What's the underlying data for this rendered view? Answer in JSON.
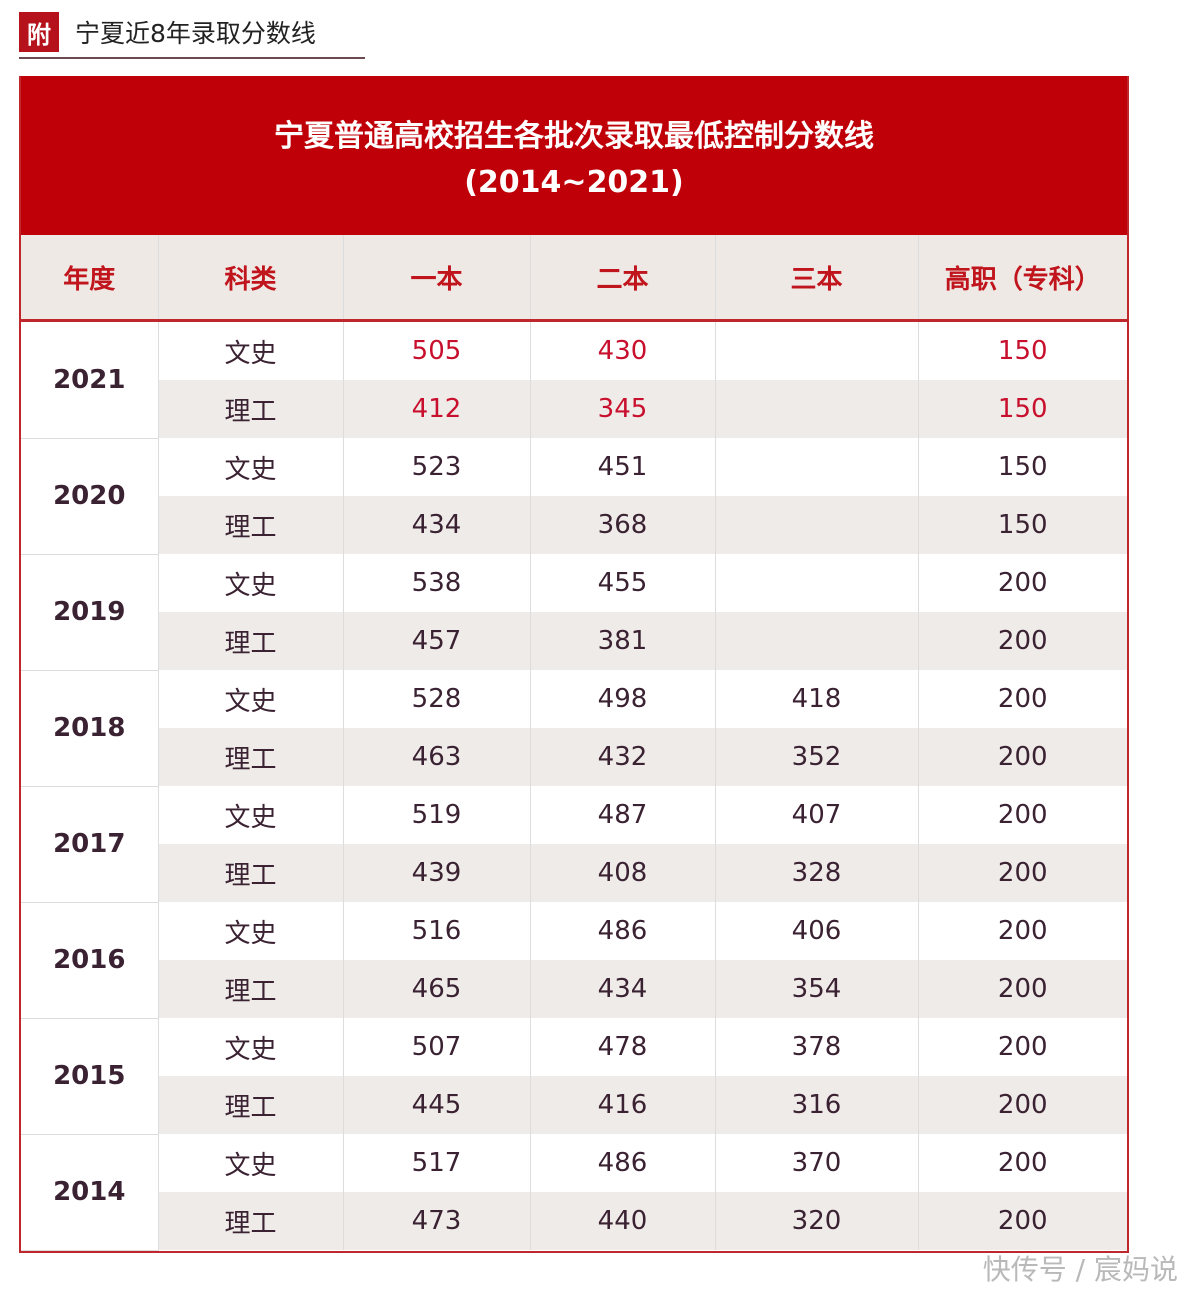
{
  "header": {
    "badge": "附",
    "title": "宁夏近8年录取分数线"
  },
  "banner": {
    "title": "宁夏普通高校招生各批次录取最低控制分数线",
    "range": "(2014~2021)"
  },
  "columns": [
    "年度",
    "科类",
    "一本",
    "二本",
    "三本",
    "高职（专科）"
  ],
  "rows": [
    {
      "year": "2021",
      "highlight": true,
      "subs": [
        [
          "文史",
          "505",
          "430",
          "",
          "150"
        ],
        [
          "理工",
          "412",
          "345",
          "",
          "150"
        ]
      ]
    },
    {
      "year": "2020",
      "subs": [
        [
          "文史",
          "523",
          "451",
          "",
          "150"
        ],
        [
          "理工",
          "434",
          "368",
          "",
          "150"
        ]
      ]
    },
    {
      "year": "2019",
      "subs": [
        [
          "文史",
          "538",
          "455",
          "",
          "200"
        ],
        [
          "理工",
          "457",
          "381",
          "",
          "200"
        ]
      ]
    },
    {
      "year": "2018",
      "subs": [
        [
          "文史",
          "528",
          "498",
          "418",
          "200"
        ],
        [
          "理工",
          "463",
          "432",
          "352",
          "200"
        ]
      ]
    },
    {
      "year": "2017",
      "subs": [
        [
          "文史",
          "519",
          "487",
          "407",
          "200"
        ],
        [
          "理工",
          "439",
          "408",
          "328",
          "200"
        ]
      ]
    },
    {
      "year": "2016",
      "subs": [
        [
          "文史",
          "516",
          "486",
          "406",
          "200"
        ],
        [
          "理工",
          "465",
          "434",
          "354",
          "200"
        ]
      ]
    },
    {
      "year": "2015",
      "subs": [
        [
          "文史",
          "507",
          "478",
          "378",
          "200"
        ],
        [
          "理工",
          "445",
          "416",
          "316",
          "200"
        ]
      ]
    },
    {
      "year": "2014",
      "subs": [
        [
          "文史",
          "517",
          "486",
          "370",
          "200"
        ],
        [
          "理工",
          "473",
          "440",
          "320",
          "200"
        ]
      ]
    }
  ],
  "watermark": "快传号 / 宸妈说"
}
